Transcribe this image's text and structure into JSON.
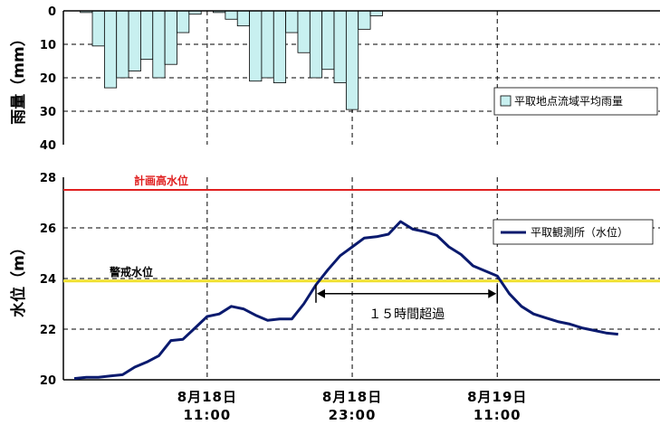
{
  "chart_data": [
    {
      "type": "bar",
      "ylabel": "雨量（mm）",
      "ylim": [
        0,
        40
      ],
      "y_inverted": true,
      "yticks": [
        "0",
        "10",
        "20",
        "30",
        "40"
      ],
      "grid": true,
      "legend_position": "right",
      "series": [
        {
          "name": "平取地点流域平均雨量",
          "color": "#c8f0f0",
          "values": [
            0.5,
            10.5,
            23,
            20,
            18,
            14.5,
            20,
            16,
            6.5,
            1,
            0,
            0.5,
            2.5,
            4.5,
            21,
            20,
            21.5,
            6.5,
            12.5,
            20,
            17.5,
            21.5,
            29.5,
            5.5,
            1.5
          ]
        }
      ]
    },
    {
      "type": "line",
      "ylabel": "水位（m）",
      "ylim": [
        20,
        28
      ],
      "yticks": [
        "20",
        "22",
        "24",
        "26",
        "28"
      ],
      "xticks": [
        {
          "date": "8月18日",
          "time": "11:00"
        },
        {
          "date": "8月18日",
          "time": "23:00"
        },
        {
          "date": "8月19日",
          "time": "11:00"
        }
      ],
      "grid": true,
      "legend_position": "top-right",
      "series": [
        {
          "name": "平取観測所（水位）",
          "color": "#0a1a6e",
          "points": [
            [
              0,
              20.05
            ],
            [
              1,
              20.1
            ],
            [
              2,
              20.1
            ],
            [
              3,
              20.15
            ],
            [
              4,
              20.2
            ],
            [
              5,
              20.5
            ],
            [
              6,
              20.7
            ],
            [
              7,
              20.95
            ],
            [
              8,
              21.55
            ],
            [
              9,
              21.6
            ],
            [
              10,
              22.05
            ],
            [
              11,
              22.5
            ],
            [
              12,
              22.6
            ],
            [
              13,
              22.9
            ],
            [
              14,
              22.8
            ],
            [
              15,
              22.55
            ],
            [
              16,
              22.35
            ],
            [
              17,
              22.4
            ],
            [
              18,
              22.4
            ],
            [
              19,
              23.0
            ],
            [
              20,
              23.75
            ],
            [
              21,
              24.35
            ],
            [
              22,
              24.9
            ],
            [
              23,
              25.25
            ],
            [
              24,
              25.6
            ],
            [
              25,
              25.65
            ],
            [
              26,
              25.75
            ],
            [
              27,
              26.25
            ],
            [
              28,
              25.95
            ],
            [
              29,
              25.85
            ],
            [
              30,
              25.7
            ],
            [
              31,
              25.25
            ],
            [
              32,
              24.95
            ],
            [
              33,
              24.5
            ],
            [
              34,
              24.3
            ],
            [
              35,
              24.1
            ],
            [
              36,
              23.4
            ],
            [
              37,
              22.9
            ],
            [
              38,
              22.6
            ],
            [
              39,
              22.45
            ],
            [
              40,
              22.3
            ],
            [
              41,
              22.2
            ],
            [
              42,
              22.05
            ],
            [
              43,
              21.95
            ],
            [
              44,
              21.85
            ],
            [
              45,
              21.8
            ]
          ]
        }
      ],
      "reference_lines": [
        {
          "label": "計画高水位",
          "value": 27.5,
          "color": "#e02020"
        },
        {
          "label": "警戒水位",
          "value": 23.9,
          "color": "#f0e030"
        }
      ],
      "annotations": [
        {
          "text": "１５時間超過",
          "from_hour": 20,
          "to_hour": 35,
          "value": 23.4
        }
      ]
    }
  ]
}
